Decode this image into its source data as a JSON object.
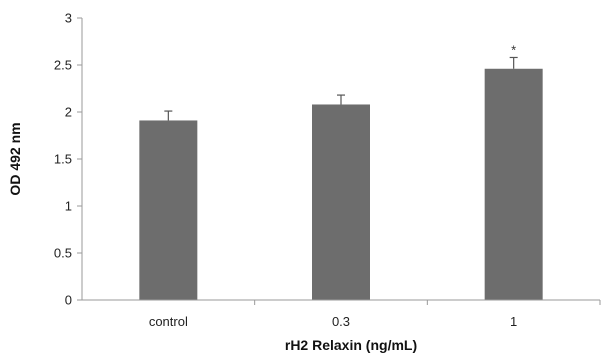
{
  "chart_data": {
    "type": "bar",
    "categories": [
      "control",
      "0.3",
      "1"
    ],
    "values": [
      1.91,
      2.08,
      2.46
    ],
    "error": [
      0.1,
      0.1,
      0.12
    ],
    "significance": [
      "",
      "",
      "*"
    ],
    "xlabel": "rH2 Relaxin (ng/mL)",
    "ylabel": "OD 492 nm",
    "ylim": [
      0,
      3
    ],
    "yticks": [
      "0",
      "0.5",
      "1",
      "1.5",
      "2",
      "2.5",
      "3"
    ],
    "grid": false,
    "legend": "none",
    "bar_color": "#6d6d6d",
    "axis_color": "#9a9a9a",
    "error_color": "#555555"
  }
}
